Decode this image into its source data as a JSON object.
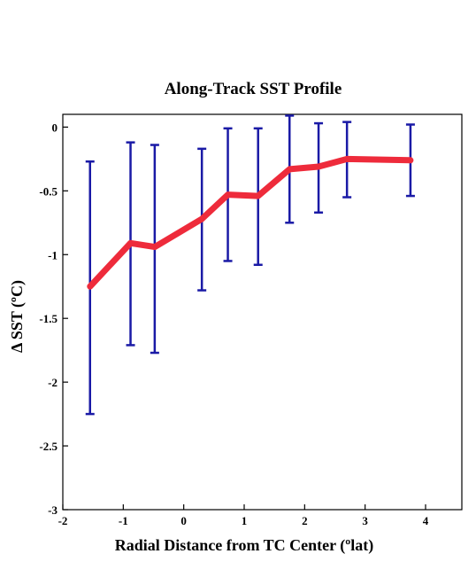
{
  "chart_data": {
    "type": "line",
    "title": "Along-Track SST Profile",
    "xlabel": "Radial Distance from TC Center (ºlat)",
    "ylabel": "Δ SST (ºC)",
    "xlim": [
      -2,
      4.6
    ],
    "ylim": [
      -3,
      0.1
    ],
    "xticks": [
      -2,
      -1,
      0,
      1,
      2,
      3,
      4
    ],
    "yticks": [
      0,
      -0.5,
      -1,
      -1.5,
      -2,
      -2.5,
      -3
    ],
    "xtick_labels": [
      "-2",
      "-1",
      "0",
      "1",
      "2",
      "3",
      "4"
    ],
    "ytick_labels": [
      "0",
      "-0.5",
      "-1",
      "-1.5",
      "-2",
      "-2.5",
      "-3"
    ],
    "grid": false,
    "series": [
      {
        "x": [
          -1.55,
          -0.88,
          -0.48,
          0.3,
          0.73,
          1.23,
          1.75,
          2.23,
          2.7,
          3.75
        ],
        "y": [
          -1.25,
          -0.91,
          -0.94,
          -0.72,
          -0.53,
          -0.54,
          -0.33,
          -0.31,
          -0.25,
          -0.26
        ],
        "err_low": [
          -2.25,
          -1.71,
          -1.77,
          -1.28,
          -1.05,
          -1.08,
          -0.75,
          -0.67,
          -0.55,
          -0.54
        ],
        "err_high": [
          -0.27,
          -0.12,
          -0.14,
          -0.17,
          -0.01,
          -0.01,
          0.09,
          0.03,
          0.04,
          0.02
        ],
        "line_color": "#ee2b3b",
        "errorbar_color": "#1a1aa6"
      }
    ]
  }
}
